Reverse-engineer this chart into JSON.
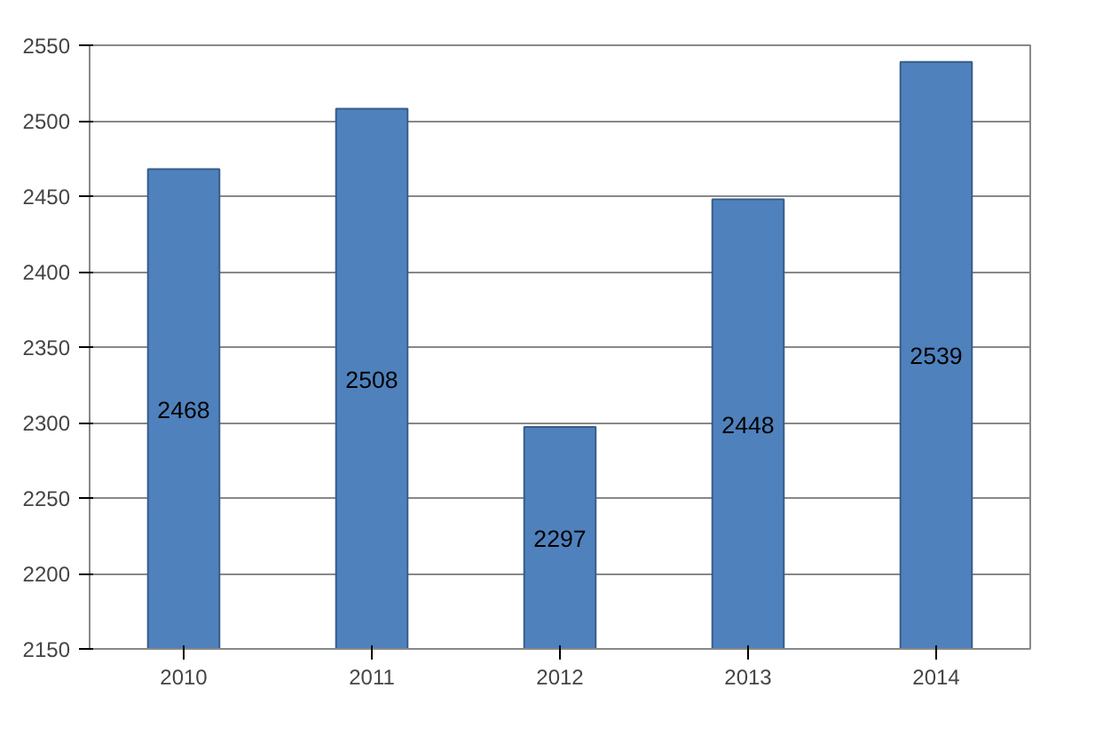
{
  "chart_data": {
    "type": "bar",
    "categories": [
      "2010",
      "2011",
      "2012",
      "2013",
      "2014"
    ],
    "values": [
      2468,
      2508,
      2297,
      2448,
      2539
    ],
    "color": "#4f81bd",
    "ylim": [
      2150,
      2550
    ],
    "yticks": [
      2150,
      2200,
      2250,
      2300,
      2350,
      2400,
      2450,
      2500,
      2550
    ],
    "grid": "y",
    "data_labels": true
  }
}
